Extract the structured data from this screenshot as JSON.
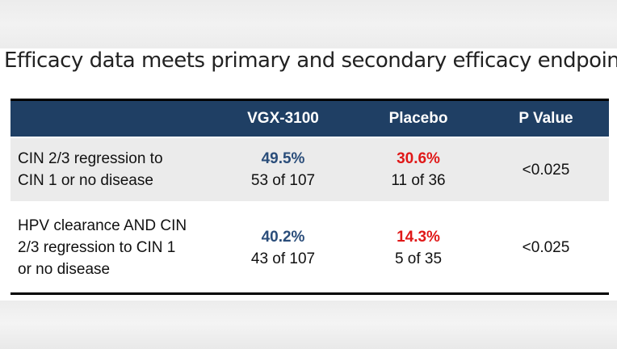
{
  "title": "Efficacy data meets primary and secondary efficacy endpoints",
  "colors": {
    "header_bg": "#1f3f64",
    "vgx_percent": "#2a4d7a",
    "placebo_percent": "#e01818",
    "shaded_row": "#ebebeb"
  },
  "table": {
    "headers": {
      "outcome": "",
      "vgx": "VGX-3100",
      "placebo": "Placebo",
      "pvalue": "P Value"
    },
    "rows": [
      {
        "outcome_lines": [
          "CIN 2/3 regression to",
          "CIN 1 or no disease"
        ],
        "vgx_percent": "49.5%",
        "vgx_count": "53 of 107",
        "placebo_percent": "30.6%",
        "placebo_count": "11 of 36",
        "pvalue": "<0.025"
      },
      {
        "outcome_lines": [
          "HPV clearance AND CIN",
          "2/3 regression to CIN 1",
          "or no disease"
        ],
        "vgx_percent": "40.2%",
        "vgx_count": "43 of 107",
        "placebo_percent": "14.3%",
        "placebo_count": "5 of 35",
        "pvalue": "<0.025"
      }
    ]
  }
}
